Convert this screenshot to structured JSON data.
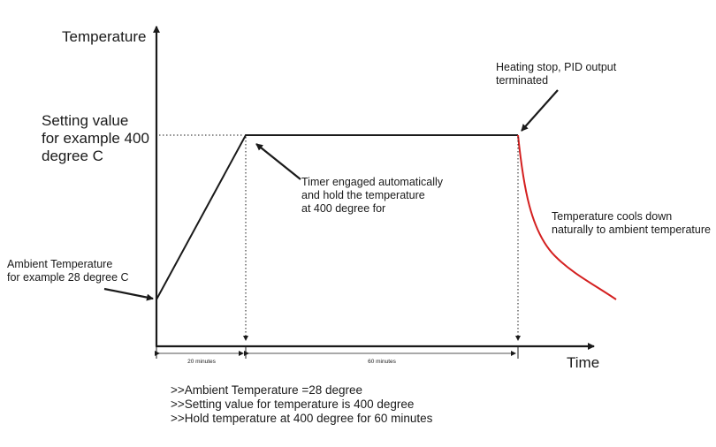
{
  "axes": {
    "y_label": "Temperature",
    "x_label": "Time"
  },
  "labels": {
    "setting_value": [
      "Setting value",
      "for example 400",
      "degree C"
    ],
    "ambient": [
      "Ambient Temperature",
      "for example 28 degree C"
    ],
    "timer": [
      "Timer engaged automatically",
      "and hold the temperature",
      "at 400 degree for"
    ],
    "heating_stop": [
      "Heating stop, PID output",
      "terminated"
    ],
    "cooling": [
      "Temperature cools down",
      "naturally to ambient temperature"
    ]
  },
  "durations": {
    "ramp": "20 minutes",
    "hold": "60 minutes"
  },
  "notes": [
    ">>Ambient Temperature =28 degree",
    ">>Setting value for temperature is 400 degree",
    ">>Hold temperature at 400 degree for 60 minutes"
  ],
  "colors": {
    "profile": "#1a1a1a",
    "cooling": "#d42020"
  }
}
